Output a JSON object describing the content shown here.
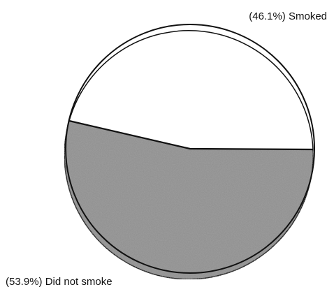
{
  "chart_data": {
    "type": "pie",
    "title": "",
    "slices": [
      {
        "label": "Smoked",
        "value": 46.1,
        "display": "(46.1%) Smoked",
        "color": "#ffffff"
      },
      {
        "label": "Did not smoke",
        "value": 53.9,
        "display": "(53.9%) Did not smoke",
        "color": "#9a9a9a"
      }
    ],
    "legend": "none"
  }
}
